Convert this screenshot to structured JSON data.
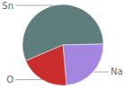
{
  "chart_data": {
    "type": "pie",
    "categories": [
      "Sn",
      "Na",
      "O"
    ],
    "values": [
      56,
      24,
      20
    ],
    "colors": [
      "#5e7d7c",
      "#a486e0",
      "#c92d2d"
    ]
  }
}
